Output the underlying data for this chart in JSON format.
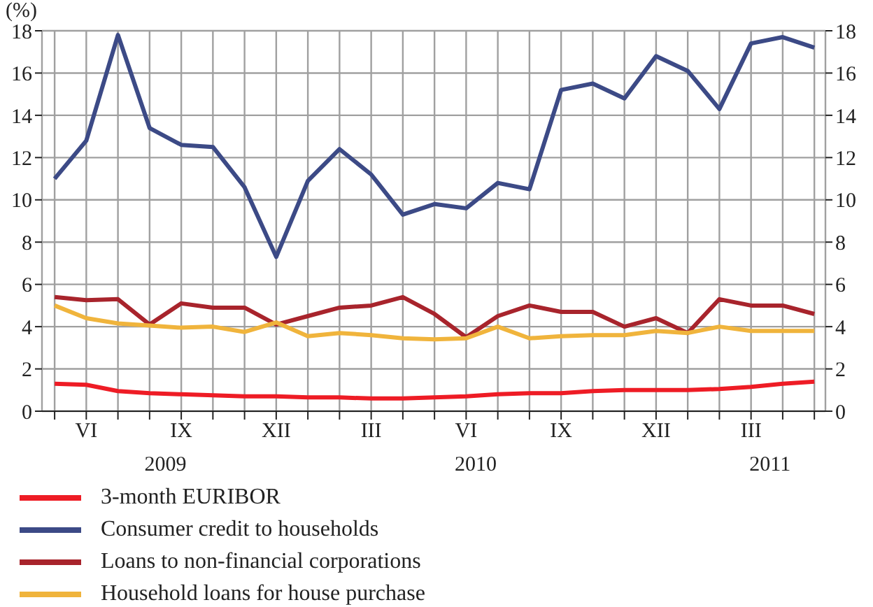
{
  "chart_data": {
    "type": "line",
    "ylabel": "(%)",
    "categories": [
      null,
      "VI",
      null,
      null,
      "IX",
      null,
      null,
      "XII",
      null,
      null,
      "III",
      null,
      null,
      "VI",
      null,
      null,
      "IX",
      null,
      null,
      "XII",
      null,
      null,
      "III",
      null,
      null
    ],
    "series": [
      {
        "name": "3-month EURIBOR",
        "color": "#ee1c25",
        "values": [
          1.3,
          1.25,
          0.95,
          0.85,
          0.8,
          0.75,
          0.7,
          0.7,
          0.65,
          0.65,
          0.6,
          0.6,
          0.65,
          0.7,
          0.8,
          0.85,
          0.85,
          0.95,
          1.0,
          1.0,
          1.0,
          1.05,
          1.15,
          1.3,
          1.4
        ]
      },
      {
        "name": "Consumer credit to households",
        "color": "#3c4a86",
        "values": [
          11.0,
          12.8,
          17.8,
          13.4,
          12.6,
          12.5,
          10.6,
          7.3,
          10.9,
          12.4,
          11.2,
          9.3,
          9.8,
          9.6,
          10.8,
          10.5,
          15.2,
          15.5,
          14.8,
          16.8,
          16.1,
          14.3,
          17.4,
          17.7,
          17.2
        ]
      },
      {
        "name": "Loans to non-financial corporations",
        "color": "#a8242c",
        "values": [
          5.4,
          5.25,
          5.3,
          4.1,
          5.1,
          4.9,
          4.9,
          4.1,
          4.5,
          4.9,
          5.0,
          5.4,
          4.6,
          3.5,
          4.5,
          5.0,
          4.7,
          4.7,
          4.0,
          4.4,
          3.7,
          5.3,
          5.0,
          5.0,
          4.6
        ]
      },
      {
        "name": "Household loans for house purchase",
        "color": "#f0b43c",
        "values": [
          5.0,
          4.4,
          4.15,
          4.05,
          3.95,
          4.0,
          3.75,
          4.2,
          3.55,
          3.7,
          3.6,
          3.45,
          3.4,
          3.45,
          4.0,
          3.45,
          3.55,
          3.6,
          3.6,
          3.8,
          3.7,
          4.0,
          3.8,
          3.8,
          3.8
        ]
      }
    ],
    "annotations": [
      "2009",
      "2010",
      "2011"
    ],
    "ylim": [
      0,
      18
    ],
    "yticks": [
      0,
      2,
      4,
      6,
      8,
      10,
      12,
      14,
      16,
      18
    ],
    "y2lim": [
      0,
      18
    ],
    "y2ticks": [
      0,
      2,
      4,
      6,
      8,
      10,
      12,
      14,
      16,
      18
    ],
    "grid": true,
    "legend": "bottom",
    "marker": "none",
    "line_style": "solid"
  }
}
